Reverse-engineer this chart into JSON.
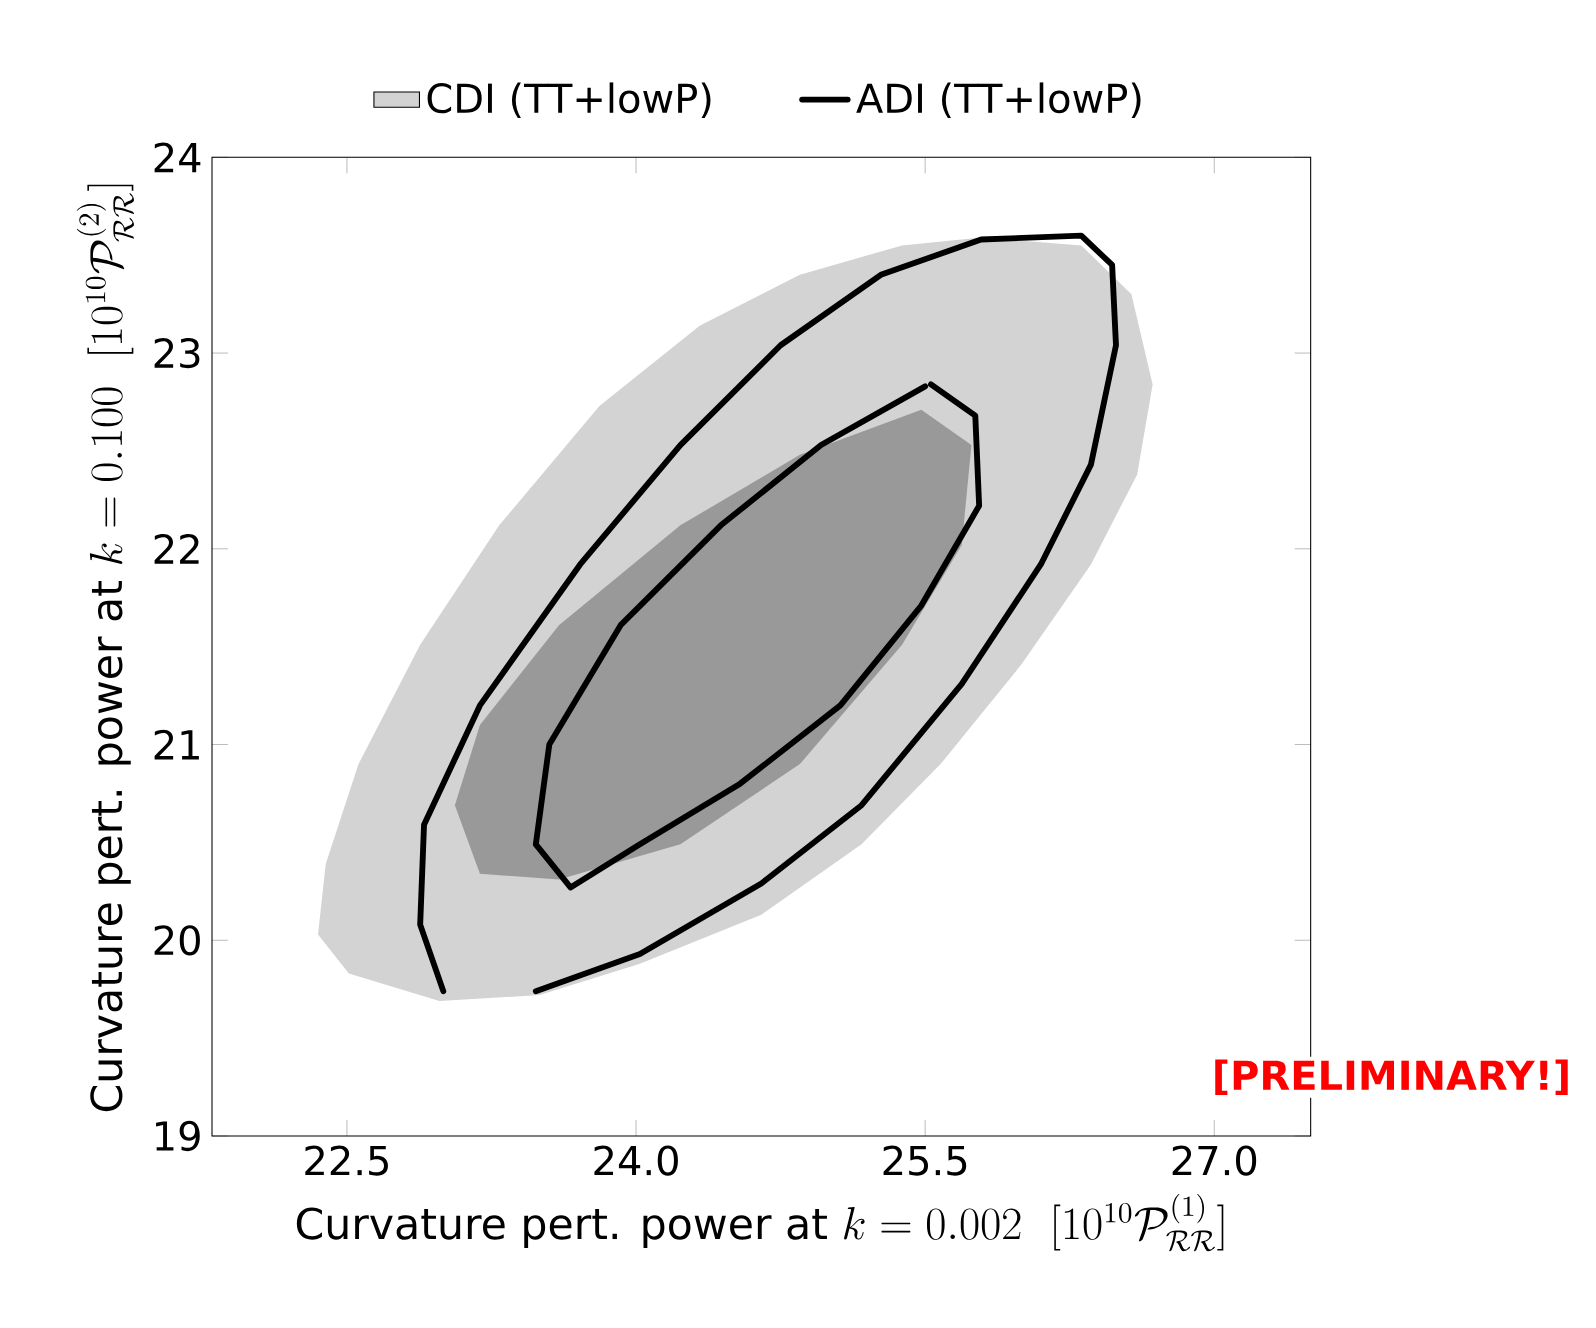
{
  "chart_data": {
    "type": "area",
    "xlabel": "\\text{Curvature pert. power at }k=0.002\\ \\ [10^{10}\\mathcal{P}^{(1)}_{\\mathcal{RR}}]",
    "ylabel": "\\text{Curvature pert. power at }k=0.100\\ \\ [10^{10}\\mathcal{P}^{(2)}_{\\mathcal{RR}}]",
    "xlim": [
      21.8,
      27.5
    ],
    "ylim": [
      19,
      24
    ],
    "xticks": [
      22.5,
      {
        "value": 24.0,
        "label": "24.0"
      },
      25.5,
      {
        "value": 27.0,
        "label": "27.0"
      }
    ],
    "yticks": [
      19,
      20,
      21,
      22,
      23,
      24
    ],
    "legend": "top",
    "annotations": [
      "[PRELIMINARY!]"
    ],
    "series": [
      {
        "name": "CDI (TT+lowP)",
        "color": "#d3d3d3",
        "x": [
          25.79,
          26.31,
          26.57,
          26.68,
          26.6,
          26.36,
          26.0,
          25.58,
          25.17,
          24.65,
          24.02,
          23.5,
          22.98,
          22.51,
          22.35,
          22.39,
          22.56,
          22.88,
          23.29,
          23.81,
          24.33,
          24.85,
          25.38
        ],
        "values": [
          23.59,
          23.55,
          23.3,
          22.84,
          22.38,
          21.92,
          21.41,
          20.9,
          20.49,
          20.13,
          19.88,
          19.72,
          19.69,
          19.83,
          20.03,
          20.39,
          20.9,
          21.51,
          22.12,
          22.73,
          23.14,
          23.4,
          23.55
        ]
      },
      {
        "color": "#999999",
        "x": [
          25.48,
          25.74,
          25.69,
          25.38,
          24.85,
          24.23,
          23.6,
          23.19,
          23.06,
          23.19,
          23.6,
          24.23,
          24.85
        ],
        "values": [
          22.71,
          22.53,
          22.02,
          21.51,
          20.9,
          20.49,
          20.31,
          20.34,
          20.69,
          21.1,
          21.61,
          22.12,
          22.48
        ]
      },
      {
        "name": "ADI (TT+lowP)",
        "type": "line",
        "color": "#000000",
        "x": [
          23.0,
          22.88,
          22.9,
          23.19,
          23.71,
          24.23,
          24.75,
          25.27,
          25.79,
          26.31,
          26.47,
          26.49,
          26.36,
          26.1,
          25.69,
          25.17,
          24.65,
          24.02,
          23.48
        ],
        "values": [
          19.74,
          20.08,
          20.59,
          21.2,
          21.92,
          22.53,
          23.04,
          23.4,
          23.58,
          23.6,
          23.45,
          23.04,
          22.43,
          21.92,
          21.31,
          20.69,
          20.29,
          19.93,
          19.74
        ]
      },
      {
        "type": "line",
        "color": "#000000",
        "x": [
          25.53,
          25.76,
          25.78,
          25.48,
          25.06,
          24.54,
          24.02,
          23.66,
          23.48,
          23.55,
          23.92,
          24.44,
          24.96,
          25.5
        ],
        "values": [
          22.84,
          22.68,
          22.22,
          21.71,
          21.2,
          20.8,
          20.49,
          20.27,
          20.49,
          21.0,
          21.61,
          22.12,
          22.53,
          22.83
        ]
      }
    ]
  }
}
